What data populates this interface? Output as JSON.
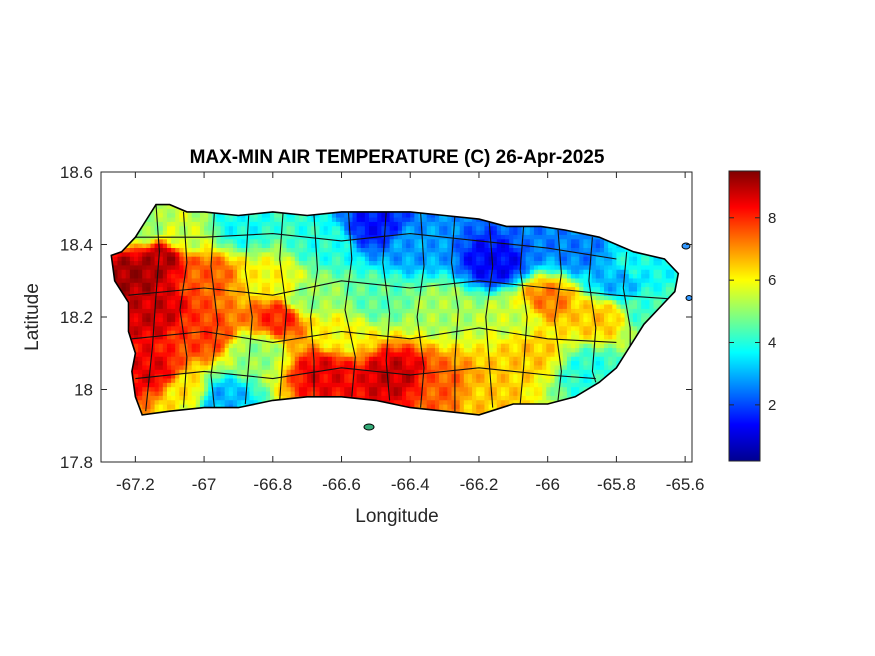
{
  "chart_data": {
    "type": "heatmap",
    "title": "MAX-MIN AIR TEMPERATURE (C) 26-Apr-2025",
    "xlabel": "Longitude",
    "ylabel": "Latitude",
    "xlim": [
      -67.3,
      -65.58
    ],
    "ylim": [
      17.8,
      18.6
    ],
    "xticks": [
      -67.2,
      -67,
      -66.8,
      -66.6,
      -66.4,
      -66.2,
      -66,
      -65.8,
      -65.6
    ],
    "xtick_labels": [
      "-67.2",
      "-67",
      "-66.8",
      "-66.6",
      "-66.4",
      "-66.2",
      "-66",
      "-65.8",
      "-65.6"
    ],
    "yticks": [
      17.8,
      18,
      18.2,
      18.4,
      18.6
    ],
    "ytick_labels": [
      "17.8",
      "18",
      "18.2",
      "18.4",
      "18.6"
    ],
    "colorbar": {
      "colormap": "jet",
      "range": [
        0.2,
        9.5
      ],
      "ticks": [
        2,
        4,
        6,
        8
      ],
      "tick_labels": [
        "2",
        "4",
        "6",
        "8"
      ],
      "placement": "right"
    },
    "grid": false,
    "island_outline": [
      [
        -67.27,
        18.37
      ],
      [
        -67.24,
        18.38
      ],
      [
        -67.2,
        18.42
      ],
      [
        -67.16,
        18.48
      ],
      [
        -67.14,
        18.51
      ],
      [
        -67.1,
        18.51
      ],
      [
        -67.05,
        18.49
      ],
      [
        -67.0,
        18.49
      ],
      [
        -66.9,
        18.48
      ],
      [
        -66.8,
        18.49
      ],
      [
        -66.7,
        18.48
      ],
      [
        -66.6,
        18.49
      ],
      [
        -66.5,
        18.49
      ],
      [
        -66.4,
        18.49
      ],
      [
        -66.3,
        18.48
      ],
      [
        -66.2,
        18.47
      ],
      [
        -66.12,
        18.45
      ],
      [
        -66.02,
        18.45
      ],
      [
        -65.95,
        18.44
      ],
      [
        -65.85,
        18.42
      ],
      [
        -65.75,
        18.38
      ],
      [
        -65.66,
        18.36
      ],
      [
        -65.62,
        18.32
      ],
      [
        -65.63,
        18.27
      ],
      [
        -65.66,
        18.24
      ],
      [
        -65.72,
        18.18
      ],
      [
        -65.76,
        18.12
      ],
      [
        -65.8,
        18.06
      ],
      [
        -65.85,
        18.02
      ],
      [
        -65.92,
        17.98
      ],
      [
        -66.0,
        17.96
      ],
      [
        -66.1,
        17.96
      ],
      [
        -66.2,
        17.93
      ],
      [
        -66.3,
        17.94
      ],
      [
        -66.4,
        17.95
      ],
      [
        -66.5,
        17.97
      ],
      [
        -66.6,
        17.98
      ],
      [
        -66.7,
        17.98
      ],
      [
        -66.8,
        17.97
      ],
      [
        -66.9,
        17.95
      ],
      [
        -67.0,
        17.95
      ],
      [
        -67.1,
        17.94
      ],
      [
        -67.18,
        17.93
      ],
      [
        -67.2,
        17.98
      ],
      [
        -67.21,
        18.05
      ],
      [
        -67.2,
        18.1
      ],
      [
        -67.22,
        18.16
      ],
      [
        -67.22,
        18.24
      ],
      [
        -67.26,
        18.3
      ]
    ],
    "field_samples": [
      {
        "lon": -67.2,
        "lat": 18.32,
        "value": 9.2
      },
      {
        "lon": -67.12,
        "lat": 18.36,
        "value": 9.0
      },
      {
        "lon": -67.05,
        "lat": 18.42,
        "value": 5.5
      },
      {
        "lon": -67.0,
        "lat": 18.32,
        "value": 7.5
      },
      {
        "lon": -67.15,
        "lat": 18.22,
        "value": 8.8
      },
      {
        "lon": -67.15,
        "lat": 18.05,
        "value": 8.5
      },
      {
        "lon": -67.0,
        "lat": 18.15,
        "value": 7.8
      },
      {
        "lon": -67.05,
        "lat": 18.0,
        "value": 6.2
      },
      {
        "lon": -66.9,
        "lat": 18.45,
        "value": 3.8
      },
      {
        "lon": -66.8,
        "lat": 18.3,
        "value": 6.0
      },
      {
        "lon": -66.85,
        "lat": 18.1,
        "value": 5.0
      },
      {
        "lon": -66.78,
        "lat": 18.2,
        "value": 8.0
      },
      {
        "lon": -66.65,
        "lat": 18.05,
        "value": 8.5
      },
      {
        "lon": -66.65,
        "lat": 18.4,
        "value": 4.0
      },
      {
        "lon": -66.5,
        "lat": 18.45,
        "value": 1.5
      },
      {
        "lon": -66.5,
        "lat": 18.25,
        "value": 4.5
      },
      {
        "lon": -66.45,
        "lat": 18.04,
        "value": 8.8
      },
      {
        "lon": -66.4,
        "lat": 18.4,
        "value": 2.8
      },
      {
        "lon": -66.3,
        "lat": 18.0,
        "value": 7.5
      },
      {
        "lon": -66.3,
        "lat": 18.22,
        "value": 5.2
      },
      {
        "lon": -66.15,
        "lat": 18.35,
        "value": 1.3
      },
      {
        "lon": -66.1,
        "lat": 18.2,
        "value": 5.5
      },
      {
        "lon": -66.05,
        "lat": 18.1,
        "value": 6.5
      },
      {
        "lon": -66.0,
        "lat": 18.42,
        "value": 2.5
      },
      {
        "lon": -66.0,
        "lat": 18.25,
        "value": 7.2
      },
      {
        "lon": -65.9,
        "lat": 18.38,
        "value": 2.5
      },
      {
        "lon": -65.85,
        "lat": 18.2,
        "value": 6.5
      },
      {
        "lon": -65.8,
        "lat": 18.3,
        "value": 3.0
      },
      {
        "lon": -65.75,
        "lat": 18.35,
        "value": 3.8
      },
      {
        "lon": -65.7,
        "lat": 18.22,
        "value": 4.2
      },
      {
        "lon": -65.88,
        "lat": 18.05,
        "value": 4.0
      },
      {
        "lon": -66.6,
        "lat": 18.15,
        "value": 6.0
      },
      {
        "lon": -66.95,
        "lat": 17.98,
        "value": 3.0
      },
      {
        "lon": -67.18,
        "lat": 18.45,
        "value": 5.0
      },
      {
        "lon": -66.7,
        "lat": 18.25,
        "value": 5.0
      },
      {
        "lon": -66.2,
        "lat": 17.98,
        "value": 6.5
      }
    ],
    "municipality_boundaries": [
      [
        [
          -67.14,
          18.51
        ],
        [
          -67.13,
          18.38
        ],
        [
          -67.14,
          18.26
        ],
        [
          -67.15,
          18.12
        ],
        [
          -67.17,
          17.94
        ]
      ],
      [
        [
          -67.06,
          18.49
        ],
        [
          -67.05,
          18.35
        ],
        [
          -67.07,
          18.22
        ],
        [
          -67.05,
          18.09
        ],
        [
          -67.06,
          17.95
        ]
      ],
      [
        [
          -66.97,
          18.49
        ],
        [
          -66.98,
          18.34
        ],
        [
          -66.96,
          18.18
        ],
        [
          -66.98,
          18.04
        ],
        [
          -66.97,
          17.95
        ]
      ],
      [
        [
          -66.87,
          18.48
        ],
        [
          -66.88,
          18.33
        ],
        [
          -66.86,
          18.2
        ],
        [
          -66.87,
          18.07
        ],
        [
          -66.88,
          17.96
        ]
      ],
      [
        [
          -66.77,
          18.49
        ],
        [
          -66.78,
          18.36
        ],
        [
          -66.76,
          18.22
        ],
        [
          -66.77,
          18.1
        ],
        [
          -66.78,
          17.97
        ]
      ],
      [
        [
          -66.68,
          18.48
        ],
        [
          -66.67,
          18.33
        ],
        [
          -66.69,
          18.2
        ],
        [
          -66.68,
          18.08
        ],
        [
          -66.68,
          17.98
        ]
      ],
      [
        [
          -66.58,
          18.49
        ],
        [
          -66.57,
          18.36
        ],
        [
          -66.59,
          18.22
        ],
        [
          -66.56,
          18.09
        ],
        [
          -66.57,
          17.98
        ]
      ],
      [
        [
          -66.47,
          18.49
        ],
        [
          -66.48,
          18.35
        ],
        [
          -66.46,
          18.21
        ],
        [
          -66.47,
          18.08
        ],
        [
          -66.46,
          17.97
        ]
      ],
      [
        [
          -66.37,
          18.49
        ],
        [
          -66.36,
          18.34
        ],
        [
          -66.38,
          18.2
        ],
        [
          -66.36,
          18.06
        ],
        [
          -66.37,
          17.95
        ]
      ],
      [
        [
          -66.27,
          18.48
        ],
        [
          -66.28,
          18.35
        ],
        [
          -66.26,
          18.22
        ],
        [
          -66.27,
          18.08
        ],
        [
          -66.27,
          17.94
        ]
      ],
      [
        [
          -66.17,
          18.46
        ],
        [
          -66.16,
          18.34
        ],
        [
          -66.18,
          18.2
        ],
        [
          -66.17,
          18.07
        ],
        [
          -66.16,
          17.95
        ]
      ],
      [
        [
          -66.07,
          18.45
        ],
        [
          -66.08,
          18.33
        ],
        [
          -66.06,
          18.2
        ],
        [
          -66.07,
          18.06
        ],
        [
          -66.08,
          17.96
        ]
      ],
      [
        [
          -65.97,
          18.44
        ],
        [
          -65.96,
          18.32
        ],
        [
          -65.98,
          18.19
        ],
        [
          -65.96,
          18.05
        ],
        [
          -65.97,
          17.97
        ]
      ],
      [
        [
          -65.87,
          18.42
        ],
        [
          -65.88,
          18.3
        ],
        [
          -65.86,
          18.17
        ],
        [
          -65.87,
          18.05
        ],
        [
          -65.86,
          18.02
        ]
      ],
      [
        [
          -65.77,
          18.38
        ],
        [
          -65.78,
          18.28
        ],
        [
          -65.76,
          18.17
        ],
        [
          -65.76,
          18.12
        ]
      ],
      [
        [
          -67.22,
          18.42
        ],
        [
          -67.0,
          18.42
        ],
        [
          -66.8,
          18.43
        ],
        [
          -66.6,
          18.41
        ],
        [
          -66.4,
          18.43
        ],
        [
          -66.2,
          18.41
        ],
        [
          -66.0,
          18.39
        ],
        [
          -65.8,
          18.36
        ]
      ],
      [
        [
          -67.22,
          18.26
        ],
        [
          -67.0,
          18.28
        ],
        [
          -66.8,
          18.26
        ],
        [
          -66.6,
          18.3
        ],
        [
          -66.4,
          18.28
        ],
        [
          -66.2,
          18.3
        ],
        [
          -66.0,
          18.28
        ],
        [
          -65.8,
          18.26
        ],
        [
          -65.64,
          18.25
        ]
      ],
      [
        [
          -67.21,
          18.14
        ],
        [
          -67.0,
          18.16
        ],
        [
          -66.8,
          18.13
        ],
        [
          -66.6,
          18.16
        ],
        [
          -66.4,
          18.14
        ],
        [
          -66.2,
          18.17
        ],
        [
          -66.0,
          18.14
        ],
        [
          -65.8,
          18.13
        ]
      ],
      [
        [
          -67.2,
          18.03
        ],
        [
          -67.0,
          18.05
        ],
        [
          -66.8,
          18.03
        ],
        [
          -66.6,
          18.06
        ],
        [
          -66.4,
          18.04
        ],
        [
          -66.2,
          18.06
        ],
        [
          -66.0,
          18.04
        ],
        [
          -65.86,
          18.03
        ]
      ]
    ]
  }
}
